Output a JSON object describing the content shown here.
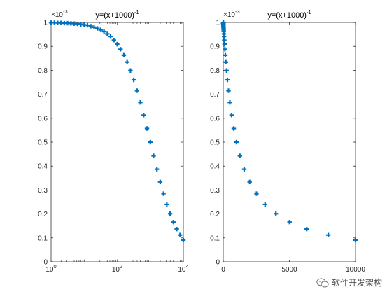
{
  "chart_data": [
    {
      "type": "scatter",
      "title": "y=(x+1000)^-1",
      "title_base": "y=(x+1000)",
      "title_exp": "-1",
      "x_scale": "log",
      "xlim": [
        1,
        10000
      ],
      "ylim": [
        0,
        1
      ],
      "y_multiplier": "×10",
      "y_multiplier_exp": "-3",
      "x_tick_labels": [
        {
          "base": "10",
          "exp": "0"
        },
        {
          "base": "10",
          "exp": "2"
        },
        {
          "base": "10",
          "exp": "4"
        }
      ],
      "y_tick_labels": [
        "0",
        "0.1",
        "0.2",
        "0.3",
        "0.4",
        "0.5",
        "0.6",
        "0.7",
        "0.8",
        "0.9",
        "1"
      ],
      "marker": "plus",
      "color": "#0072BD",
      "grid": false,
      "function": "y=(x+1000)^-1 (y shown in units of 10^-3)",
      "x": [
        1,
        1.259,
        1.585,
        1.995,
        2.512,
        3.162,
        3.981,
        5.012,
        6.31,
        7.943,
        10,
        12.59,
        15.85,
        19.95,
        25.12,
        31.62,
        39.81,
        50.12,
        63.1,
        79.43,
        100,
        125.9,
        158.5,
        199.5,
        251.2,
        316.2,
        398.1,
        501.2,
        631,
        794.3,
        1000,
        1259,
        1585,
        1995,
        2512,
        3162,
        3981,
        5012,
        6310,
        7943,
        10000
      ],
      "y": [
        0.999,
        0.999,
        0.998,
        0.998,
        0.997,
        0.997,
        0.996,
        0.995,
        0.994,
        0.992,
        0.99,
        0.988,
        0.984,
        0.98,
        0.975,
        0.969,
        0.962,
        0.952,
        0.941,
        0.926,
        0.909,
        0.888,
        0.863,
        0.834,
        0.799,
        0.76,
        0.715,
        0.666,
        0.613,
        0.557,
        0.5,
        0.443,
        0.387,
        0.334,
        0.285,
        0.24,
        0.201,
        0.166,
        0.137,
        0.112,
        0.091
      ]
    },
    {
      "type": "scatter",
      "title": "y=(x+1000)^-1",
      "title_base": "y=(x+1000)",
      "title_exp": "-1",
      "x_scale": "linear",
      "xlim": [
        0,
        10000
      ],
      "ylim": [
        0,
        1
      ],
      "y_multiplier": "×10",
      "y_multiplier_exp": "-3",
      "x_tick_labels": [
        "0",
        "5000",
        "10000"
      ],
      "y_tick_labels": [
        "0",
        "0.1",
        "0.2",
        "0.3",
        "0.4",
        "0.5",
        "0.6",
        "0.7",
        "0.8",
        "0.9",
        "1"
      ],
      "marker": "plus",
      "color": "#0072BD",
      "grid": false,
      "function": "y=(x+1000)^-1 (y shown in units of 10^-3)",
      "x": [
        1,
        1.259,
        1.585,
        1.995,
        2.512,
        3.162,
        3.981,
        5.012,
        6.31,
        7.943,
        10,
        12.59,
        15.85,
        19.95,
        25.12,
        31.62,
        39.81,
        50.12,
        63.1,
        79.43,
        100,
        125.9,
        158.5,
        199.5,
        251.2,
        316.2,
        398.1,
        501.2,
        631,
        794.3,
        1000,
        1259,
        1585,
        1995,
        2512,
        3162,
        3981,
        5012,
        6310,
        7943,
        10000
      ],
      "y": [
        0.999,
        0.999,
        0.998,
        0.998,
        0.997,
        0.997,
        0.996,
        0.995,
        0.994,
        0.992,
        0.99,
        0.988,
        0.984,
        0.98,
        0.975,
        0.969,
        0.962,
        0.952,
        0.941,
        0.926,
        0.909,
        0.888,
        0.863,
        0.834,
        0.799,
        0.76,
        0.715,
        0.666,
        0.613,
        0.557,
        0.5,
        0.443,
        0.387,
        0.334,
        0.285,
        0.24,
        0.201,
        0.166,
        0.137,
        0.112,
        0.091
      ]
    }
  ],
  "watermark": {
    "text": "软件开发架构",
    "icon": "wechat-icon"
  }
}
